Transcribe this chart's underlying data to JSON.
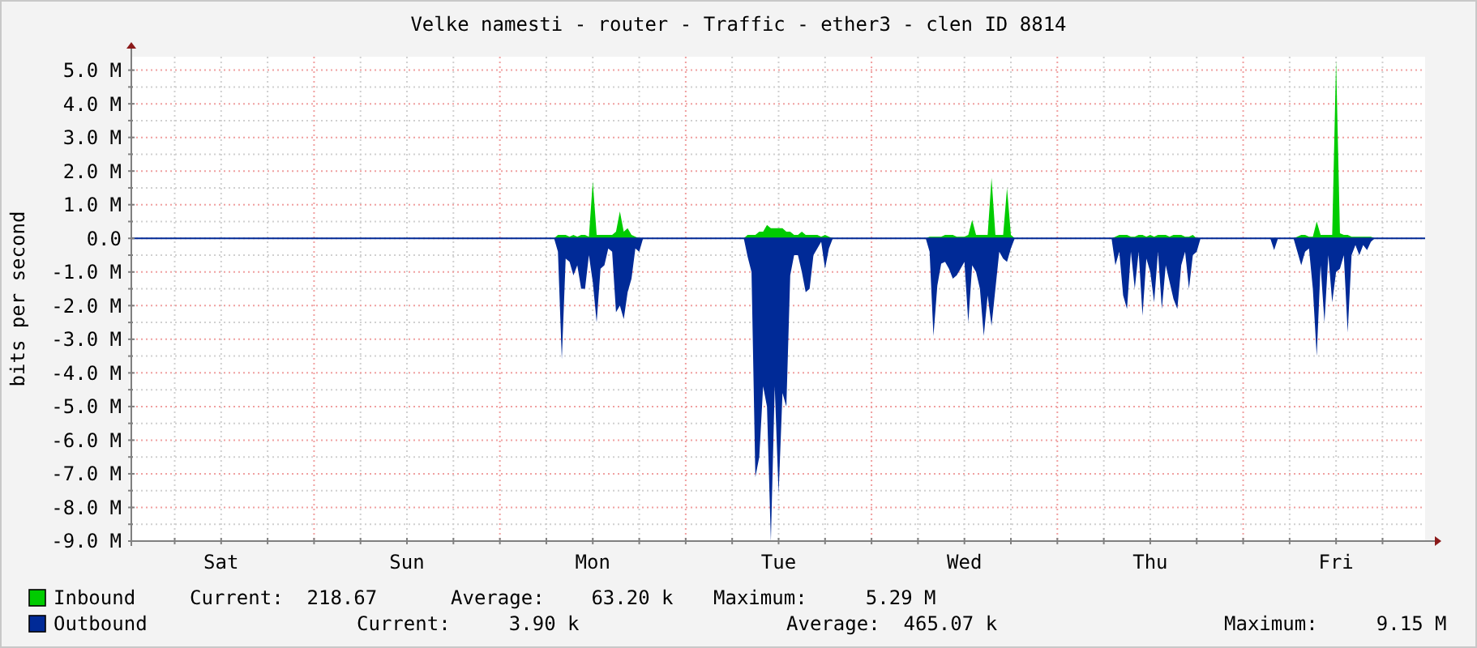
{
  "chart_data": {
    "type": "area",
    "title": "Velke namesti - router - Traffic - ether3 - clen ID 8814",
    "ylabel": "bits per second",
    "categories": [
      null,
      null,
      null,
      null,
      null,
      null,
      null,
      null,
      null,
      null,
      null,
      null,
      null,
      null,
      null,
      null,
      null,
      null,
      null,
      null,
      null,
      null,
      null,
      "Sat",
      null,
      null,
      null,
      null,
      null,
      null,
      null,
      null,
      null,
      null,
      null,
      null,
      null,
      null,
      null,
      null,
      null,
      null,
      null,
      null,
      null,
      null,
      null,
      null,
      null,
      null,
      null,
      null,
      null,
      null,
      null,
      null,
      null,
      null,
      null,
      null,
      null,
      null,
      null,
      null,
      null,
      null,
      null,
      null,
      null,
      null,
      null,
      "Sun",
      null,
      null,
      null,
      null,
      null,
      null,
      null,
      null,
      null,
      null,
      null,
      null,
      null,
      null,
      null,
      null,
      null,
      null,
      null,
      null,
      null,
      null,
      null,
      null,
      null,
      null,
      null,
      null,
      null,
      null,
      null,
      null,
      null,
      null,
      null,
      null,
      null,
      null,
      null,
      null,
      null,
      null,
      null,
      null,
      null,
      null,
      null,
      "Mon",
      null,
      null,
      null,
      null,
      null,
      null,
      null,
      null,
      null,
      null,
      null,
      null,
      null,
      null,
      null,
      null,
      null,
      null,
      null,
      null,
      null,
      null,
      null,
      null,
      null,
      null,
      null,
      null,
      null,
      null,
      null,
      null,
      null,
      null,
      null,
      null,
      null,
      null,
      null,
      null,
      null,
      null,
      null,
      null,
      null,
      null,
      null,
      "Tue",
      null,
      null,
      null,
      null,
      null,
      null,
      null,
      null,
      null,
      null,
      null,
      null,
      null,
      null,
      null,
      null,
      null,
      null,
      null,
      null,
      null,
      null,
      null,
      null,
      null,
      null,
      null,
      null,
      null,
      null,
      null,
      null,
      null,
      null,
      null,
      null,
      null,
      null,
      null,
      null,
      null,
      null,
      null,
      null,
      null,
      null,
      null,
      "Wed",
      null,
      null,
      null,
      null,
      null,
      null,
      null,
      null,
      null,
      null,
      null,
      null,
      null,
      null,
      null,
      null,
      null,
      null,
      null,
      null,
      null,
      null,
      null,
      null,
      null,
      null,
      null,
      null,
      null,
      null,
      null,
      null,
      null,
      null,
      null,
      null,
      null,
      null,
      null,
      null,
      null,
      null,
      null,
      null,
      null,
      null,
      null,
      "Thu",
      null,
      null,
      null,
      null,
      null,
      null,
      null,
      null,
      null,
      null,
      null,
      null,
      null,
      null,
      null,
      null,
      null,
      null,
      null,
      null,
      null,
      null,
      null,
      null,
      null,
      null,
      null,
      null,
      null,
      null,
      null,
      null,
      null,
      null,
      null,
      null,
      null,
      null,
      null,
      null,
      null,
      null,
      null,
      null,
      null,
      null,
      null,
      "Fri",
      null,
      null,
      null,
      null,
      null,
      null,
      null,
      null,
      null,
      null,
      null,
      null,
      null,
      null,
      null,
      null,
      null,
      null,
      null,
      null,
      null,
      null,
      null
    ],
    "series": [
      {
        "name": "Inbound",
        "color": "#00cc00",
        "values": [
          0,
          0,
          0,
          0,
          0,
          0,
          0,
          0,
          0,
          0,
          0,
          0,
          0,
          0,
          0,
          0,
          0,
          0,
          0,
          0,
          0,
          0,
          0,
          0,
          0,
          0,
          0,
          0,
          0,
          0,
          0,
          0,
          0,
          0,
          0,
          0,
          0,
          0,
          0,
          0,
          0,
          0,
          0,
          0,
          0,
          0,
          0,
          0,
          0,
          0,
          0,
          0,
          0,
          0,
          0,
          0,
          0,
          0,
          0,
          0,
          0,
          0,
          0,
          0,
          0,
          0,
          0,
          0,
          0,
          0,
          0,
          0,
          0,
          0,
          0,
          0,
          0,
          0,
          0,
          0,
          0,
          0,
          0,
          0,
          0,
          0,
          0,
          0,
          0,
          0,
          0,
          0,
          0,
          0,
          0,
          0,
          0,
          0,
          0,
          0,
          0,
          0,
          0,
          0,
          0,
          0,
          0,
          0,
          0,
          0,
          0.1,
          0.1,
          0.1,
          0.05,
          0.1,
          0.05,
          0.1,
          0.1,
          0.05,
          1.7,
          0.1,
          0.1,
          0.1,
          0.1,
          0.1,
          0.2,
          0.8,
          0.2,
          0.3,
          0.1,
          0.05,
          0,
          0,
          0,
          0,
          0,
          0,
          0,
          0,
          0,
          0,
          0,
          0,
          0,
          0,
          0,
          0,
          0,
          0,
          0,
          0,
          0,
          0,
          0,
          0,
          0,
          0,
          0,
          0,
          0.1,
          0.1,
          0.1,
          0.2,
          0.2,
          0.4,
          0.3,
          0.3,
          0.3,
          0.3,
          0.2,
          0.2,
          0.1,
          0.1,
          0.2,
          0.1,
          0.1,
          0.1,
          0.1,
          0.05,
          0.1,
          0.05,
          0,
          0,
          0,
          0,
          0,
          0,
          0,
          0,
          0,
          0,
          0,
          0,
          0,
          0,
          0,
          0,
          0,
          0,
          0,
          0,
          0,
          0,
          0,
          0,
          0,
          0.05,
          0.05,
          0.05,
          0.05,
          0.1,
          0.1,
          0.1,
          0.05,
          0.05,
          0.05,
          0.1,
          0.55,
          0.1,
          0.1,
          0.1,
          0.1,
          1.8,
          0.1,
          0.1,
          0.1,
          1.5,
          0.1,
          0,
          0,
          0,
          0,
          0,
          0,
          0,
          0,
          0,
          0,
          0,
          0,
          0,
          0,
          0,
          0,
          0,
          0,
          0,
          0,
          0,
          0,
          0,
          0,
          0,
          0,
          0.05,
          0.1,
          0.1,
          0.1,
          0.05,
          0.05,
          0.1,
          0.1,
          0.05,
          0.1,
          0.05,
          0.1,
          0.1,
          0.1,
          0.05,
          0.1,
          0.1,
          0.1,
          0.05,
          0.05,
          0.1,
          0,
          0,
          0,
          0,
          0,
          0,
          0,
          0,
          0,
          0,
          0,
          0,
          0,
          0,
          0,
          0,
          0,
          0,
          0,
          0,
          0,
          0,
          0,
          0,
          0,
          0,
          0.05,
          0.1,
          0.1,
          0.05,
          0.05,
          0.5,
          0.1,
          0.1,
          0.1,
          0.1,
          5.29,
          0.15,
          0.1,
          0.1,
          0.05,
          0.05,
          0.05,
          0.05,
          0.05,
          0.05,
          0,
          0,
          0,
          0,
          0,
          0,
          0,
          0,
          0,
          0,
          0,
          0,
          0,
          0
        ]
      },
      {
        "name": "Outbound",
        "color": "#002a97",
        "values": [
          0,
          0,
          0,
          0,
          0,
          0,
          0,
          0,
          0,
          0,
          0,
          0,
          0,
          0,
          0,
          0,
          0,
          0,
          0,
          0,
          0,
          0,
          0,
          0,
          0,
          0,
          0,
          0,
          0,
          0,
          0,
          0,
          0,
          0,
          0,
          0,
          0,
          0,
          0,
          0,
          0,
          0,
          0,
          0,
          0,
          0,
          0,
          0,
          0,
          0,
          0,
          0,
          0,
          0,
          0,
          0,
          0,
          0,
          0,
          0,
          0,
          0,
          0,
          0,
          0,
          0,
          0,
          0,
          0,
          0,
          0,
          0,
          0,
          0,
          0,
          0,
          0,
          0,
          0,
          0,
          0,
          0,
          0,
          0,
          0,
          0,
          0,
          0,
          0,
          0,
          0,
          0,
          0,
          0,
          0,
          0,
          0,
          0,
          0,
          0,
          0,
          0,
          0,
          0,
          0,
          0,
          0,
          0,
          0,
          0,
          -0.4,
          -3.6,
          -0.6,
          -0.7,
          -1.1,
          -0.8,
          -1.5,
          -1.5,
          -0.5,
          -1.3,
          -2.5,
          -0.9,
          -0.8,
          -0.3,
          -0.4,
          -2.2,
          -2.0,
          -2.4,
          -1.6,
          -1.2,
          -0.3,
          -0.4,
          0,
          0,
          0,
          0,
          0,
          0,
          0,
          0,
          0,
          0,
          0,
          0,
          0,
          0,
          0,
          0,
          0,
          0,
          0,
          0,
          0,
          0,
          0,
          0,
          0,
          0,
          0,
          -0.55,
          -1.0,
          -7.1,
          -6.5,
          -4.4,
          -5.0,
          -9.0,
          -4.4,
          -7.6,
          -4.6,
          -5.0,
          -1.1,
          -0.5,
          -0.5,
          -1.0,
          -1.6,
          -1.5,
          -0.5,
          -0.3,
          -0.1,
          -0.9,
          -0.3,
          0,
          0,
          0,
          0,
          0,
          0,
          0,
          0,
          0,
          0,
          0,
          0,
          0,
          0,
          0,
          0,
          0,
          0,
          0,
          0,
          0,
          0,
          0,
          0,
          0,
          -0.4,
          -2.9,
          -1.4,
          -0.75,
          -0.7,
          -0.9,
          -1.2,
          -1.1,
          -0.9,
          -0.7,
          -2.5,
          -0.8,
          -1.0,
          -1.5,
          -2.9,
          -1.7,
          -2.6,
          -1.5,
          -0.4,
          -0.6,
          -0.7,
          -0.3,
          0,
          0,
          0,
          0,
          0,
          0,
          0,
          0,
          0,
          0,
          0,
          0,
          0,
          0,
          0,
          0,
          0,
          0,
          0,
          0,
          0,
          0,
          0,
          0,
          0,
          0,
          -0.8,
          -0.4,
          -1.7,
          -2.1,
          -0.4,
          -1.5,
          -0.4,
          -2.3,
          -0.6,
          -1.0,
          -1.9,
          -0.4,
          -2.1,
          -0.8,
          -1.3,
          -1.8,
          -2.1,
          -0.8,
          -0.4,
          -1.5,
          -0.5,
          -0.4,
          0,
          0,
          0,
          0,
          0,
          0,
          0,
          0,
          0,
          0,
          0,
          0,
          0,
          0,
          0,
          0,
          0,
          0,
          0,
          -0.35,
          0,
          0,
          0,
          0,
          0,
          -0.4,
          -0.8,
          -0.4,
          -0.3,
          -1.5,
          -3.5,
          -0.8,
          -2.5,
          -0.5,
          -1.9,
          -1.0,
          -0.9,
          -0.5,
          -2.8,
          -0.5,
          -0.2,
          -0.5,
          -0.2,
          -0.35,
          -0.1,
          0,
          0,
          0,
          0,
          0,
          0,
          0,
          0,
          0,
          0,
          0,
          0,
          0,
          0
        ]
      }
    ],
    "ylim": [
      -9,
      5.4
    ],
    "yticks": [
      {
        "value": -9,
        "label": "-9.0 M"
      },
      {
        "value": -8.5,
        "label": null
      },
      {
        "value": -8,
        "label": "-8.0 M"
      },
      {
        "value": -7.5,
        "label": null
      },
      {
        "value": -7,
        "label": "-7.0 M"
      },
      {
        "value": -6.5,
        "label": null
      },
      {
        "value": -6,
        "label": "-6.0 M"
      },
      {
        "value": -5.5,
        "label": null
      },
      {
        "value": -5,
        "label": "-5.0 M"
      },
      {
        "value": -4.5,
        "label": null
      },
      {
        "value": -4,
        "label": "-4.0 M"
      },
      {
        "value": -3.5,
        "label": null
      },
      {
        "value": -3,
        "label": "-3.0 M"
      },
      {
        "value": -2.5,
        "label": null
      },
      {
        "value": -2,
        "label": "-2.0 M"
      },
      {
        "value": -1.5,
        "label": null
      },
      {
        "value": -1,
        "label": "-1.0 M"
      },
      {
        "value": -0.5,
        "label": null
      },
      {
        "value": 0,
        "label": "0.0"
      },
      {
        "value": 0.5,
        "label": null
      },
      {
        "value": 1,
        "label": "1.0 M"
      },
      {
        "value": 1.5,
        "label": null
      },
      {
        "value": 2,
        "label": "2.0 M"
      },
      {
        "value": 2.5,
        "label": null
      },
      {
        "value": 3,
        "label": "3.0 M"
      },
      {
        "value": 3.5,
        "label": null
      },
      {
        "value": 4,
        "label": "4.0 M"
      },
      {
        "value": 4.5,
        "label": null
      },
      {
        "value": 5,
        "label": "5.0 M"
      }
    ],
    "grid": true,
    "legend": "bottom",
    "annotations": [
      "Current:  218.67",
      "Average:    63.20 k",
      "Maximum:     5.29 M",
      "Current:     3.90 k",
      "Average:  465.07 k",
      "Maximum:     9.15 M"
    ]
  }
}
